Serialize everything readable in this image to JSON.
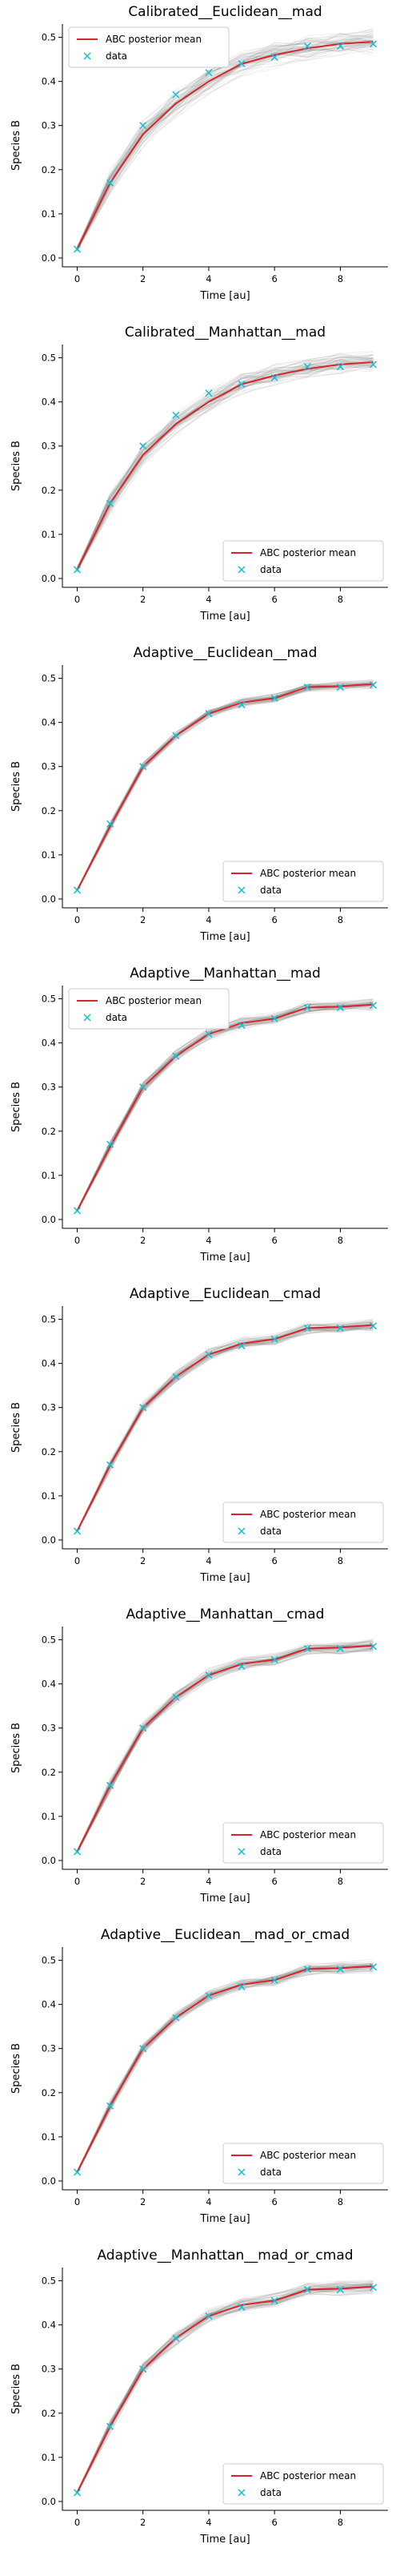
{
  "colors": {
    "mean_line": "#d62728",
    "data_marker": "#17becf",
    "samples": "#808080"
  },
  "chart_data": [
    {
      "type": "line",
      "title": "Calibrated__Euclidean__mad",
      "xlabel": "Time [au]",
      "ylabel": "Species B",
      "xlim": [
        -0.45,
        9.45
      ],
      "ylim": [
        -0.02,
        0.53
      ],
      "xticks": [
        "0",
        "2",
        "4",
        "6",
        "8"
      ],
      "yticks": [
        "0.0",
        "0.1",
        "0.2",
        "0.3",
        "0.4",
        "0.5"
      ],
      "legend": {
        "position": "top-left",
        "entries": [
          "ABC posterior mean",
          "data"
        ]
      },
      "series": [
        {
          "name": "ABC posterior mean",
          "x": [
            0,
            1,
            2,
            3,
            4,
            5,
            6,
            7,
            8,
            9
          ],
          "y": [
            0.02,
            0.17,
            0.28,
            0.35,
            0.4,
            0.44,
            0.46,
            0.475,
            0.485,
            0.49
          ]
        },
        {
          "name": "data",
          "x": [
            0,
            1,
            2,
            3,
            4,
            5,
            6,
            7,
            8,
            9
          ],
          "y": [
            0.02,
            0.17,
            0.3,
            0.37,
            0.42,
            0.44,
            0.455,
            0.48,
            0.48,
            0.485
          ]
        }
      ],
      "samples_spread": 0.035
    },
    {
      "type": "line",
      "title": "Calibrated__Manhattan__mad",
      "xlabel": "Time [au]",
      "ylabel": "Species B",
      "xlim": [
        -0.45,
        9.45
      ],
      "ylim": [
        -0.02,
        0.53
      ],
      "xticks": [
        "0",
        "2",
        "4",
        "6",
        "8"
      ],
      "yticks": [
        "0.0",
        "0.1",
        "0.2",
        "0.3",
        "0.4",
        "0.5"
      ],
      "legend": {
        "position": "bottom-right",
        "entries": [
          "ABC posterior mean",
          "data"
        ]
      },
      "series": [
        {
          "name": "ABC posterior mean",
          "x": [
            0,
            1,
            2,
            3,
            4,
            5,
            6,
            7,
            8,
            9
          ],
          "y": [
            0.02,
            0.17,
            0.28,
            0.35,
            0.4,
            0.44,
            0.46,
            0.475,
            0.485,
            0.49
          ]
        },
        {
          "name": "data",
          "x": [
            0,
            1,
            2,
            3,
            4,
            5,
            6,
            7,
            8,
            9
          ],
          "y": [
            0.02,
            0.17,
            0.3,
            0.37,
            0.42,
            0.44,
            0.455,
            0.48,
            0.48,
            0.485
          ]
        }
      ],
      "samples_spread": 0.03
    },
    {
      "type": "line",
      "title": "Adaptive__Euclidean__mad",
      "xlabel": "Time [au]",
      "ylabel": "Species B",
      "xlim": [
        -0.45,
        9.45
      ],
      "ylim": [
        -0.02,
        0.53
      ],
      "xticks": [
        "0",
        "2",
        "4",
        "6",
        "8"
      ],
      "yticks": [
        "0.0",
        "0.1",
        "0.2",
        "0.3",
        "0.4",
        "0.5"
      ],
      "legend": {
        "position": "bottom-right",
        "entries": [
          "ABC posterior mean",
          "data"
        ]
      },
      "series": [
        {
          "name": "ABC posterior mean",
          "x": [
            0,
            1,
            2,
            3,
            4,
            5,
            6,
            7,
            8,
            9
          ],
          "y": [
            0.02,
            0.165,
            0.3,
            0.37,
            0.42,
            0.445,
            0.455,
            0.48,
            0.482,
            0.487
          ]
        },
        {
          "name": "data",
          "x": [
            0,
            1,
            2,
            3,
            4,
            5,
            6,
            7,
            8,
            9
          ],
          "y": [
            0.02,
            0.17,
            0.3,
            0.37,
            0.42,
            0.44,
            0.455,
            0.48,
            0.48,
            0.485
          ]
        }
      ],
      "samples_spread": 0.012
    },
    {
      "type": "line",
      "title": "Adaptive__Manhattan__mad",
      "xlabel": "Time [au]",
      "ylabel": "Species B",
      "xlim": [
        -0.45,
        9.45
      ],
      "ylim": [
        -0.02,
        0.53
      ],
      "xticks": [
        "0",
        "2",
        "4",
        "6",
        "8"
      ],
      "yticks": [
        "0.0",
        "0.1",
        "0.2",
        "0.3",
        "0.4",
        "0.5"
      ],
      "legend": {
        "position": "top-left",
        "entries": [
          "ABC posterior mean",
          "data"
        ]
      },
      "series": [
        {
          "name": "ABC posterior mean",
          "x": [
            0,
            1,
            2,
            3,
            4,
            5,
            6,
            7,
            8,
            9
          ],
          "y": [
            0.02,
            0.165,
            0.3,
            0.37,
            0.42,
            0.445,
            0.455,
            0.48,
            0.482,
            0.487
          ]
        },
        {
          "name": "data",
          "x": [
            0,
            1,
            2,
            3,
            4,
            5,
            6,
            7,
            8,
            9
          ],
          "y": [
            0.02,
            0.17,
            0.3,
            0.37,
            0.42,
            0.44,
            0.455,
            0.48,
            0.48,
            0.485
          ]
        }
      ],
      "samples_spread": 0.015
    },
    {
      "type": "line",
      "title": "Adaptive__Euclidean__cmad",
      "xlabel": "Time [au]",
      "ylabel": "Species B",
      "xlim": [
        -0.45,
        9.45
      ],
      "ylim": [
        -0.02,
        0.53
      ],
      "xticks": [
        "0",
        "2",
        "4",
        "6",
        "8"
      ],
      "yticks": [
        "0.0",
        "0.1",
        "0.2",
        "0.3",
        "0.4",
        "0.5"
      ],
      "legend": {
        "position": "bottom-right",
        "entries": [
          "ABC posterior mean",
          "data"
        ]
      },
      "series": [
        {
          "name": "ABC posterior mean",
          "x": [
            0,
            1,
            2,
            3,
            4,
            5,
            6,
            7,
            8,
            9
          ],
          "y": [
            0.02,
            0.17,
            0.3,
            0.37,
            0.42,
            0.445,
            0.455,
            0.48,
            0.482,
            0.487
          ]
        },
        {
          "name": "data",
          "x": [
            0,
            1,
            2,
            3,
            4,
            5,
            6,
            7,
            8,
            9
          ],
          "y": [
            0.02,
            0.17,
            0.3,
            0.37,
            0.42,
            0.44,
            0.455,
            0.48,
            0.48,
            0.485
          ]
        }
      ],
      "samples_spread": 0.015
    },
    {
      "type": "line",
      "title": "Adaptive__Manhattan__cmad",
      "xlabel": "Time [au]",
      "ylabel": "Species B",
      "xlim": [
        -0.45,
        9.45
      ],
      "ylim": [
        -0.02,
        0.53
      ],
      "xticks": [
        "0",
        "2",
        "4",
        "6",
        "8"
      ],
      "yticks": [
        "0.0",
        "0.1",
        "0.2",
        "0.3",
        "0.4",
        "0.5"
      ],
      "legend": {
        "position": "bottom-right",
        "entries": [
          "ABC posterior mean",
          "data"
        ]
      },
      "series": [
        {
          "name": "ABC posterior mean",
          "x": [
            0,
            1,
            2,
            3,
            4,
            5,
            6,
            7,
            8,
            9
          ],
          "y": [
            0.02,
            0.17,
            0.3,
            0.37,
            0.42,
            0.445,
            0.455,
            0.48,
            0.482,
            0.487
          ]
        },
        {
          "name": "data",
          "x": [
            0,
            1,
            2,
            3,
            4,
            5,
            6,
            7,
            8,
            9
          ],
          "y": [
            0.02,
            0.17,
            0.3,
            0.37,
            0.42,
            0.44,
            0.455,
            0.48,
            0.48,
            0.485
          ]
        }
      ],
      "samples_spread": 0.017
    },
    {
      "type": "line",
      "title": "Adaptive__Euclidean__mad_or_cmad",
      "xlabel": "Time [au]",
      "ylabel": "Species B",
      "xlim": [
        -0.45,
        9.45
      ],
      "ylim": [
        -0.02,
        0.53
      ],
      "xticks": [
        "0",
        "2",
        "4",
        "6",
        "8"
      ],
      "yticks": [
        "0.0",
        "0.1",
        "0.2",
        "0.3",
        "0.4",
        "0.5"
      ],
      "legend": {
        "position": "bottom-right",
        "entries": [
          "ABC posterior mean",
          "data"
        ]
      },
      "series": [
        {
          "name": "ABC posterior mean",
          "x": [
            0,
            1,
            2,
            3,
            4,
            5,
            6,
            7,
            8,
            9
          ],
          "y": [
            0.02,
            0.17,
            0.3,
            0.37,
            0.42,
            0.445,
            0.455,
            0.48,
            0.482,
            0.487
          ]
        },
        {
          "name": "data",
          "x": [
            0,
            1,
            2,
            3,
            4,
            5,
            6,
            7,
            8,
            9
          ],
          "y": [
            0.02,
            0.17,
            0.3,
            0.37,
            0.42,
            0.44,
            0.455,
            0.48,
            0.48,
            0.485
          ]
        }
      ],
      "samples_spread": 0.016
    },
    {
      "type": "line",
      "title": "Adaptive__Manhattan__mad_or_cmad",
      "xlabel": "Time [au]",
      "ylabel": "Species B",
      "xlim": [
        -0.45,
        9.45
      ],
      "ylim": [
        -0.02,
        0.53
      ],
      "xticks": [
        "0",
        "2",
        "4",
        "6",
        "8"
      ],
      "yticks": [
        "0.0",
        "0.1",
        "0.2",
        "0.3",
        "0.4",
        "0.5"
      ],
      "legend": {
        "position": "bottom-right",
        "entries": [
          "ABC posterior mean",
          "data"
        ]
      },
      "series": [
        {
          "name": "ABC posterior mean",
          "x": [
            0,
            1,
            2,
            3,
            4,
            5,
            6,
            7,
            8,
            9
          ],
          "y": [
            0.02,
            0.17,
            0.3,
            0.37,
            0.42,
            0.445,
            0.455,
            0.48,
            0.482,
            0.487
          ]
        },
        {
          "name": "data",
          "x": [
            0,
            1,
            2,
            3,
            4,
            5,
            6,
            7,
            8,
            9
          ],
          "y": [
            0.02,
            0.17,
            0.3,
            0.37,
            0.42,
            0.44,
            0.455,
            0.48,
            0.48,
            0.485
          ]
        }
      ],
      "samples_spread": 0.018
    }
  ]
}
